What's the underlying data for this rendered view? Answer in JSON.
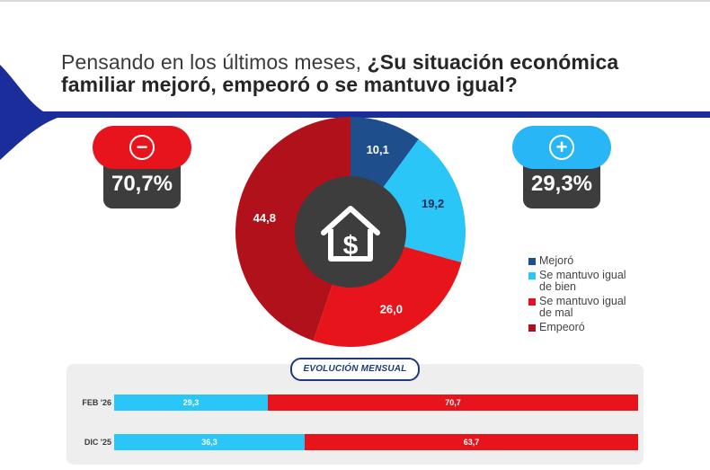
{
  "header": {
    "title_normal": "Pensando en los últimos meses, ",
    "title_bold": "¿Su situación económica familiar mejoró, empeoró o se mantuvo igual?"
  },
  "badges": {
    "negative": {
      "symbol": "−",
      "value": "70,7%",
      "color": "#e8141c"
    },
    "positive": {
      "symbol": "+",
      "value": "29,3%",
      "color": "#29b6f6"
    }
  },
  "center_icon": {
    "name": "house-dollar-icon",
    "glyph": "$"
  },
  "chart_data": [
    {
      "type": "pie",
      "style": "donut",
      "categories": [
        "Mejoró",
        "Se mantuvo igual de bien",
        "Se mantuvo igual de mal",
        "Empeoró"
      ],
      "values": [
        10.1,
        19.2,
        26.0,
        44.8
      ],
      "data_labels": [
        "10,1",
        "19,2",
        "26,0",
        "44,8"
      ],
      "colors": [
        "#1f4e8c",
        "#29c6f7",
        "#e8141c",
        "#b0111a"
      ],
      "legend": [
        {
          "label_line1": "Mejoró",
          "label_line2": ""
        },
        {
          "label_line1": "Se mantuvo igual",
          "label_line2": "de bien"
        },
        {
          "label_line1": "Se mantuvo igual",
          "label_line2": "de mal"
        },
        {
          "label_line1": "Empeoró",
          "label_line2": ""
        }
      ],
      "legend_position": "right"
    },
    {
      "type": "bar",
      "orientation": "horizontal-stacked",
      "title": "EVOLUCIÓN MENSUAL",
      "categories": [
        "FEB '26",
        "DIC '25"
      ],
      "series": [
        {
          "name": "positive",
          "values": [
            29.3,
            36.3
          ],
          "labels": [
            "29,3",
            "36,3"
          ],
          "color": "#29c6f7"
        },
        {
          "name": "negative",
          "values": [
            70.7,
            63.7
          ],
          "labels": [
            "70,7",
            "63,7"
          ],
          "color": "#e8141c"
        }
      ],
      "xlim": [
        0,
        100
      ]
    }
  ]
}
